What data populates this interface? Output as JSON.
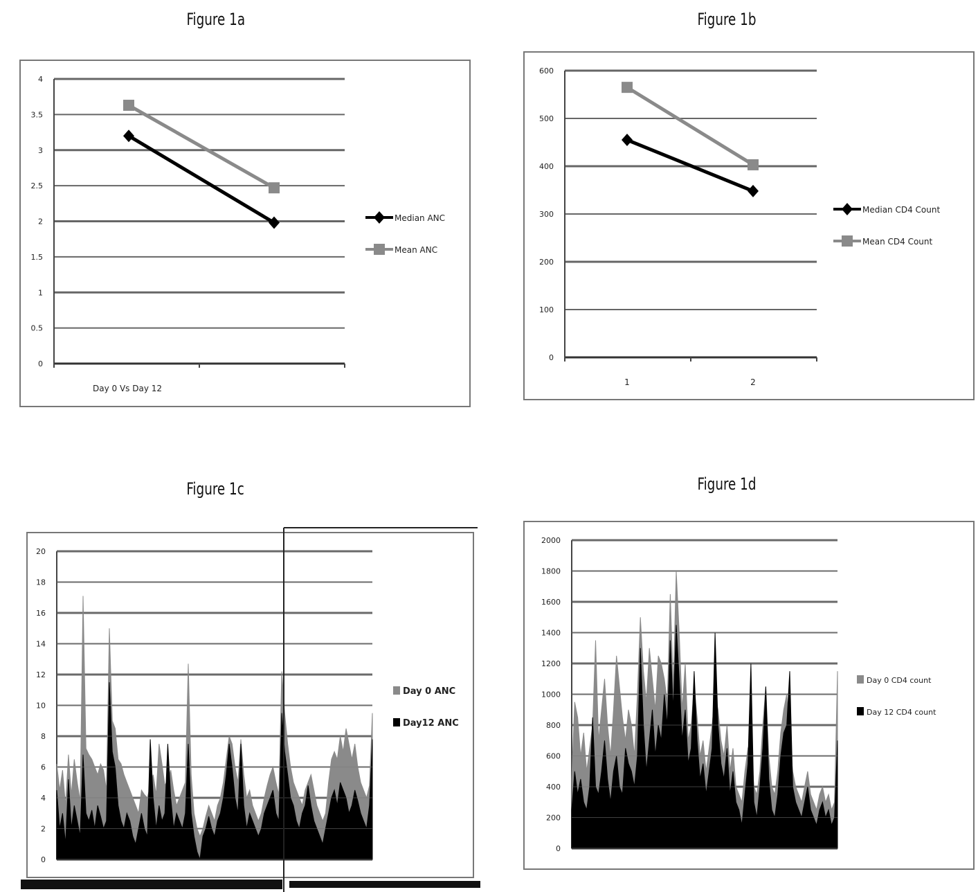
{
  "charts": {
    "a": {
      "title": "Figure 1a",
      "chart_data": {
        "type": "line",
        "categories": [
          "Day 0 Vs Day 12",
          ""
        ],
        "series": [
          {
            "name": "Median ANC",
            "values": [
              3.2,
              1.98
            ],
            "color": "#000000",
            "marker": "diamond"
          },
          {
            "name": "Mean ANC",
            "values": [
              3.63,
              2.47
            ],
            "color": "#8a8a8a",
            "marker": "square"
          }
        ],
        "ylim": [
          0,
          4
        ],
        "yticks": [
          "0",
          "0.5",
          "1",
          "1.5",
          "2",
          "2.5",
          "3",
          "3.5",
          "4"
        ],
        "grid": true,
        "legend": "right"
      }
    },
    "b": {
      "title": "Figure 1b",
      "chart_data": {
        "type": "line",
        "categories": [
          "1",
          "2"
        ],
        "series": [
          {
            "name": "Median CD4 Count",
            "values": [
              455,
              348
            ],
            "color": "#000000",
            "marker": "diamond"
          },
          {
            "name": "Mean CD4 Count",
            "values": [
              565,
              403
            ],
            "color": "#8a8a8a",
            "marker": "square"
          }
        ],
        "ylim": [
          0,
          600
        ],
        "yticks": [
          "0",
          "100",
          "200",
          "300",
          "400",
          "500",
          "600"
        ],
        "grid": true,
        "legend": "right"
      }
    },
    "c": {
      "title": "Figure 1c",
      "chart_data": {
        "type": "area",
        "series": [
          {
            "name": "Day 0 ANC",
            "color": "#8a8a8a",
            "values": [
              6.2,
              4.5,
              5.8,
              3.5,
              6.8,
              4.2,
              6.5,
              5.0,
              3.8,
              17.1,
              7.2,
              6.8,
              6.5,
              6.0,
              5.5,
              6.2,
              5.8,
              4.5,
              15.0,
              9.0,
              8.5,
              6.5,
              6.2,
              5.5,
              5.0,
              4.5,
              4.0,
              3.5,
              3.0,
              4.5,
              4.2,
              4.0,
              4.8,
              5.5,
              4.2,
              7.5,
              6.2,
              4.8,
              5.2,
              5.8,
              4.5,
              3.5,
              4.0,
              4.5,
              5.0,
              12.7,
              5.5,
              3.0,
              2.0,
              1.5,
              2.0,
              2.8,
              3.5,
              3.0,
              2.5,
              3.5,
              4.0,
              5.0,
              6.5,
              8.0,
              7.5,
              6.0,
              5.0,
              7.8,
              5.5,
              4.0,
              4.5,
              3.5,
              3.0,
              2.5,
              3.0,
              4.0,
              4.8,
              5.5,
              6.0,
              5.0,
              4.2,
              12.2,
              9.5,
              7.5,
              6.0,
              5.0,
              4.5,
              4.0,
              3.5,
              4.5,
              5.0,
              5.5,
              4.5,
              3.5,
              3.0,
              2.5,
              3.0,
              5.0,
              6.5,
              7.0,
              6.5,
              8.0,
              7.0,
              8.5,
              7.5,
              6.5,
              7.5,
              6.0,
              5.0,
              4.5,
              4.0,
              4.8,
              9.5
            ]
          },
          {
            "name": "Day12 ANC",
            "color": "#000000",
            "values": [
              4.5,
              2.0,
              3.0,
              1.0,
              5.2,
              2.0,
              3.5,
              2.5,
              1.5,
              6.8,
              3.0,
              2.5,
              3.2,
              2.0,
              3.5,
              2.8,
              2.0,
              2.5,
              11.5,
              7.0,
              6.0,
              3.5,
              2.5,
              2.0,
              3.0,
              2.5,
              1.5,
              1.0,
              2.0,
              3.0,
              2.0,
              1.5,
              7.8,
              4.0,
              2.0,
              3.5,
              2.5,
              3.0,
              7.5,
              4.0,
              2.0,
              3.0,
              2.5,
              2.0,
              3.0,
              7.5,
              3.0,
              1.5,
              0.5,
              0.0,
              1.5,
              2.0,
              2.8,
              2.0,
              1.5,
              2.5,
              3.0,
              4.0,
              5.5,
              7.5,
              6.0,
              4.0,
              3.0,
              7.5,
              3.5,
              2.0,
              3.0,
              2.5,
              2.0,
              1.5,
              2.0,
              3.0,
              3.5,
              4.0,
              4.5,
              3.0,
              2.5,
              9.5,
              7.0,
              5.5,
              4.0,
              3.5,
              2.5,
              2.0,
              3.0,
              3.5,
              4.8,
              3.5,
              2.5,
              2.0,
              1.5,
              1.0,
              2.0,
              3.0,
              4.0,
              4.5,
              3.5,
              5.0,
              4.5,
              4.0,
              3.0,
              3.5,
              4.5,
              3.8,
              3.0,
              2.5,
              2.0,
              3.5,
              7.8
            ]
          }
        ],
        "yticks": [
          "0",
          "2",
          "4",
          "6",
          "8",
          "10",
          "12",
          "14",
          "16",
          "18",
          "20"
        ],
        "ylim": [
          0,
          20
        ],
        "grid": true,
        "legend": "right"
      }
    },
    "d": {
      "title": "Figure 1d",
      "chart_data": {
        "type": "area",
        "series": [
          {
            "name": "Day 0 CD4 count",
            "color": "#8a8a8a",
            "values": [
              450,
              950,
              850,
              600,
              750,
              500,
              650,
              800,
              1350,
              700,
              900,
              1100,
              800,
              600,
              900,
              1250,
              1050,
              850,
              700,
              900,
              800,
              600,
              1000,
              1500,
              1150,
              950,
              1300,
              1100,
              900,
              1250,
              1200,
              1100,
              950,
              1650,
              1050,
              1800,
              1400,
              900,
              1200,
              700,
              800,
              1050,
              850,
              600,
              700,
              500,
              650,
              800,
              1000,
              900,
              700,
              600,
              800,
              500,
              650,
              400,
              350,
              300,
              500,
              650,
              700,
              400,
              350,
              500,
              800,
              1050,
              600,
              400,
              350,
              500,
              750,
              900,
              1000,
              700,
              500,
              400,
              350,
              300,
              400,
              500,
              350,
              300,
              250,
              350,
              400,
              300,
              350,
              250,
              300,
              1150
            ]
          },
          {
            "name": "Day 12 CD4 count",
            "color": "#000000",
            "values": [
              250,
              500,
              350,
              450,
              300,
              250,
              400,
              850,
              400,
              350,
              500,
              700,
              450,
              300,
              500,
              600,
              400,
              350,
              650,
              550,
              500,
              400,
              600,
              1300,
              800,
              500,
              700,
              900,
              600,
              800,
              700,
              1000,
              800,
              1350,
              900,
              1450,
              1100,
              700,
              900,
              550,
              650,
              1150,
              700,
              450,
              550,
              350,
              500,
              650,
              1400,
              800,
              550,
              450,
              650,
              350,
              500,
              300,
              250,
              150,
              350,
              550,
              1200,
              300,
              200,
              400,
              650,
              1050,
              450,
              250,
              200,
              350,
              600,
              750,
              800,
              1150,
              400,
              300,
              250,
              200,
              300,
              400,
              250,
              200,
              150,
              250,
              300,
              200,
              250,
              150,
              200,
              700
            ]
          }
        ],
        "yticks": [
          "0",
          "200",
          "400",
          "600",
          "800",
          "1000",
          "1200",
          "1400",
          "1600",
          "1800",
          "2000"
        ],
        "ylim": [
          0,
          2000
        ],
        "grid": true,
        "legend": "right"
      }
    }
  }
}
